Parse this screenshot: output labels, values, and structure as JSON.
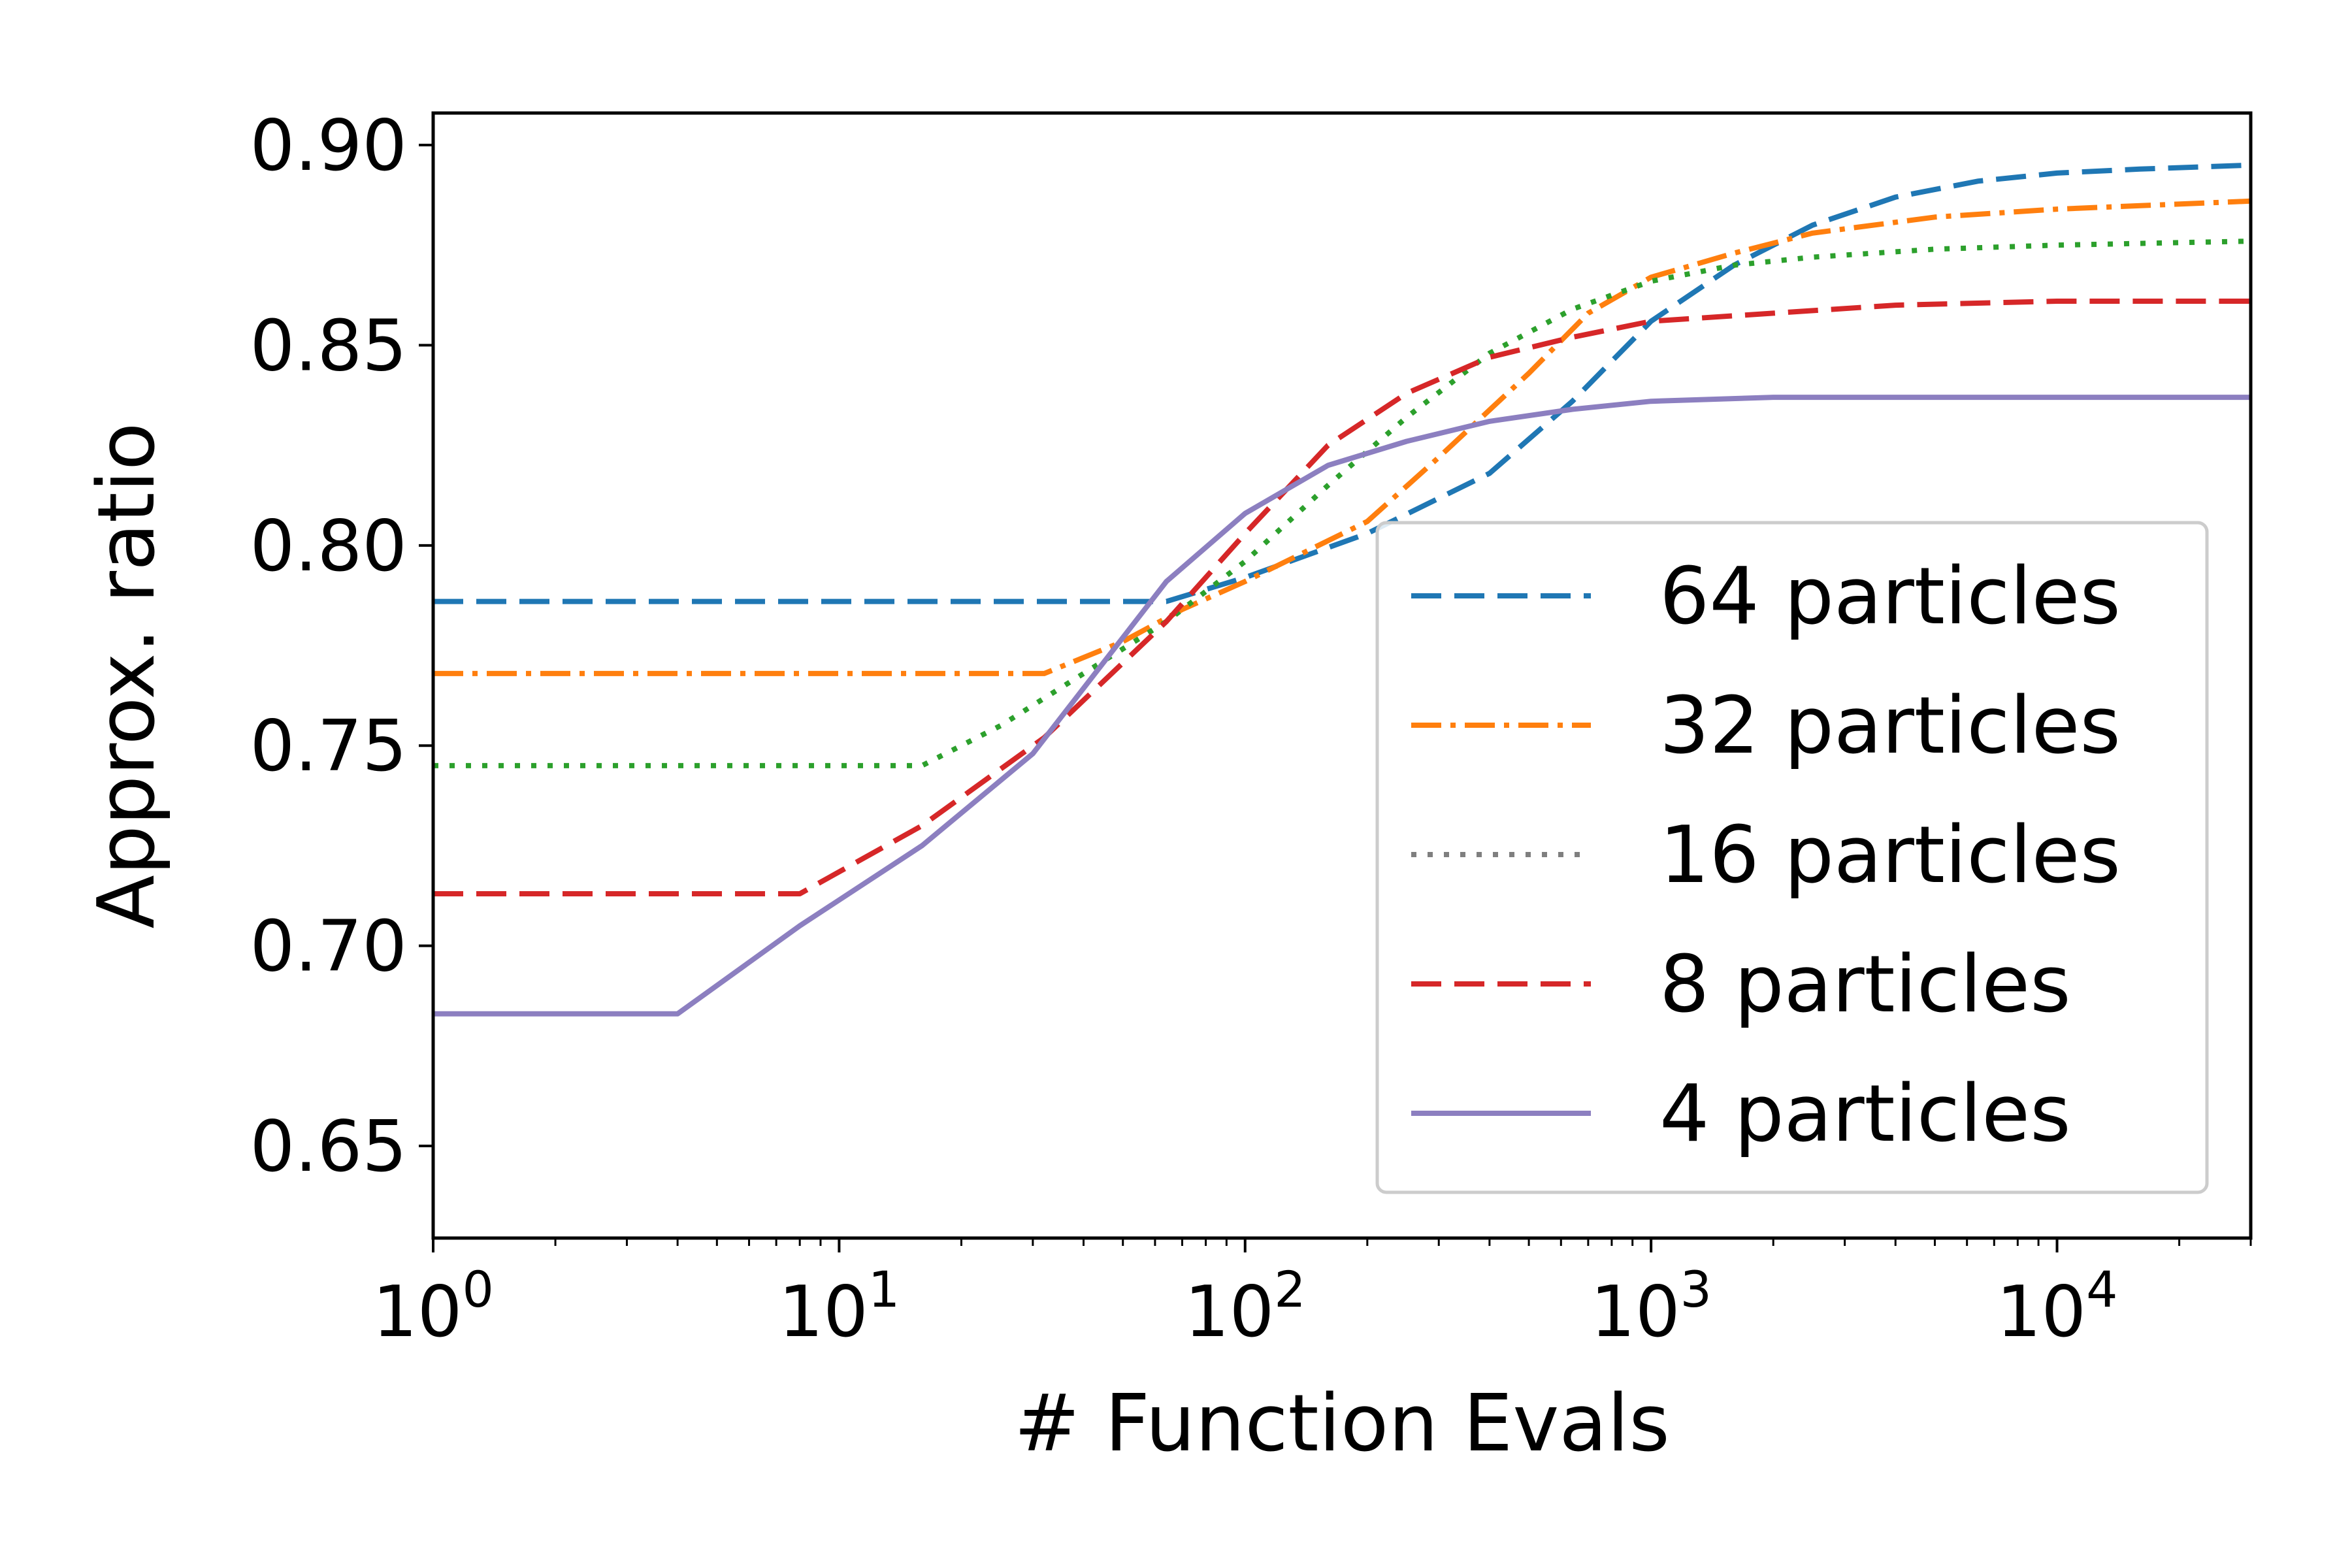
{
  "chart_data": {
    "type": "line",
    "xlabel": "# Function Evals",
    "ylabel": "Approx. ratio",
    "x_scale": "log",
    "xlim": [
      1,
      30000
    ],
    "ylim": [
      0.627,
      0.908
    ],
    "x_ticks": [
      {
        "value": 1,
        "base": "10",
        "exp": "0"
      },
      {
        "value": 10,
        "base": "10",
        "exp": "1"
      },
      {
        "value": 100,
        "base": "10",
        "exp": "2"
      },
      {
        "value": 1000,
        "base": "10",
        "exp": "3"
      },
      {
        "value": 10000,
        "base": "10",
        "exp": "4"
      }
    ],
    "y_ticks": [
      {
        "value": 0.65,
        "label": "0.65"
      },
      {
        "value": 0.7,
        "label": "0.70"
      },
      {
        "value": 0.75,
        "label": "0.75"
      },
      {
        "value": 0.8,
        "label": "0.80"
      },
      {
        "value": 0.85,
        "label": "0.85"
      },
      {
        "value": 0.9,
        "label": "0.90"
      }
    ],
    "grid": false,
    "legend_position": "lower-right",
    "series": [
      {
        "name": "64 particles",
        "color": "#1f77b4",
        "dash": "dashed",
        "x": [
          1,
          2,
          4,
          8,
          16,
          32,
          64,
          100,
          200,
          400,
          640,
          1000,
          1600,
          2500,
          4000,
          6400,
          10000,
          16000,
          30000
        ],
        "y": [
          0.786,
          0.786,
          0.786,
          0.786,
          0.786,
          0.786,
          0.786,
          0.792,
          0.803,
          0.818,
          0.836,
          0.856,
          0.87,
          0.88,
          0.887,
          0.891,
          0.893,
          0.894,
          0.895
        ]
      },
      {
        "name": "32 particles",
        "color": "#ff7f0e",
        "dash": "dashdot",
        "x": [
          1,
          2,
          4,
          8,
          16,
          32,
          50,
          70,
          100,
          200,
          300,
          500,
          700,
          1000,
          1600,
          2500,
          5000,
          10000,
          30000
        ],
        "y": [
          0.768,
          0.768,
          0.768,
          0.768,
          0.768,
          0.768,
          0.776,
          0.784,
          0.791,
          0.806,
          0.822,
          0.843,
          0.858,
          0.867,
          0.873,
          0.878,
          0.882,
          0.884,
          0.886
        ]
      },
      {
        "name": "16 particles",
        "color": "#2ca02c",
        "color_tail": "#7f7f7f",
        "dash": "dotted",
        "x": [
          1,
          2,
          4,
          8,
          16,
          25,
          40,
          64,
          100,
          160,
          250,
          400,
          640,
          1000,
          1600,
          2500,
          5000,
          10000,
          30000
        ],
        "y": [
          0.745,
          0.745,
          0.745,
          0.745,
          0.745,
          0.755,
          0.768,
          0.781,
          0.796,
          0.815,
          0.832,
          0.848,
          0.859,
          0.866,
          0.87,
          0.872,
          0.874,
          0.875,
          0.876
        ]
      },
      {
        "name": "8 particles",
        "color": "#d62728",
        "dash": "dashed",
        "x": [
          1,
          2,
          4,
          8,
          16,
          32,
          64,
          100,
          160,
          250,
          400,
          640,
          1000,
          2000,
          4000,
          10000,
          30000
        ],
        "y": [
          0.713,
          0.713,
          0.713,
          0.713,
          0.73,
          0.752,
          0.781,
          0.803,
          0.825,
          0.838,
          0.847,
          0.852,
          0.856,
          0.858,
          0.86,
          0.861,
          0.861
        ]
      },
      {
        "name": "4 particles",
        "color": "#8c7fc0",
        "dash": "solid",
        "x": [
          1,
          2,
          4,
          8,
          16,
          30,
          64,
          100,
          160,
          250,
          400,
          640,
          1000,
          2000,
          5000,
          10000,
          30000
        ],
        "y": [
          0.683,
          0.683,
          0.683,
          0.705,
          0.725,
          0.748,
          0.791,
          0.808,
          0.82,
          0.826,
          0.831,
          0.834,
          0.836,
          0.837,
          0.837,
          0.837,
          0.837
        ]
      }
    ]
  }
}
